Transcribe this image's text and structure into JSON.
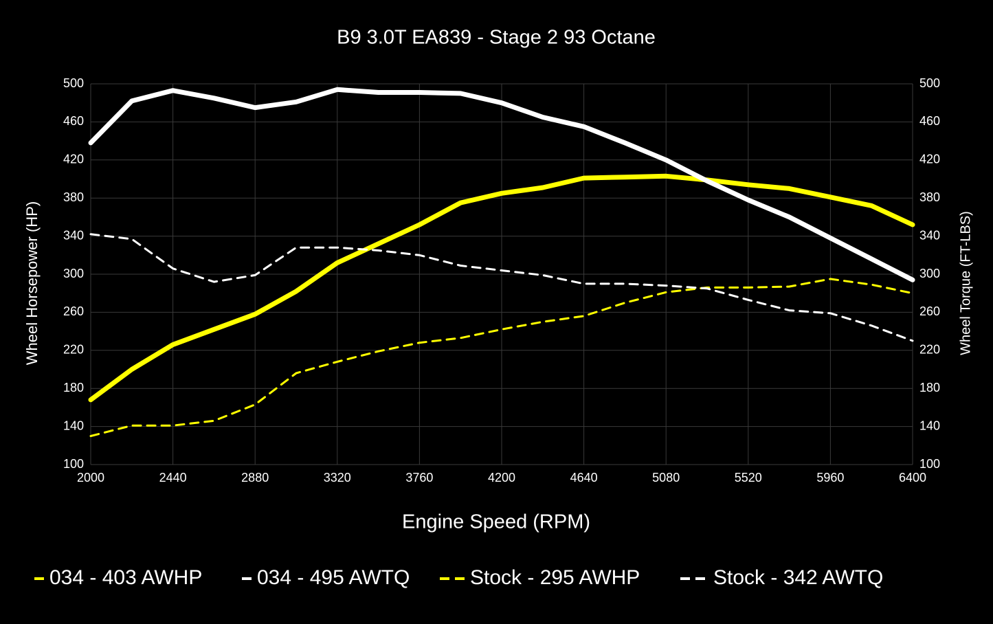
{
  "chart_data": {
    "type": "line",
    "title": "B9 3.0T EA839 - Stage 2 93 Octane",
    "x_label": "Engine Speed (RPM)",
    "y_label": "Wheel Horsepower (HP)",
    "y2_label": "Wheel Torque (FT-LBS)",
    "x": [
      2000,
      2220,
      2440,
      2660,
      2880,
      3100,
      3320,
      3540,
      3760,
      3980,
      4200,
      4420,
      4640,
      4860,
      5080,
      5300,
      5520,
      5740,
      5960,
      6180,
      6400
    ],
    "xlim": [
      2000,
      6400
    ],
    "xticks": [
      2000,
      2440,
      2880,
      3320,
      3760,
      4200,
      4640,
      5080,
      5520,
      5960,
      6400
    ],
    "ylim": [
      100,
      500
    ],
    "yticks": [
      100,
      140,
      180,
      220,
      260,
      300,
      340,
      380,
      420,
      460,
      500
    ],
    "y2lim": [
      100,
      500
    ],
    "y2ticks": [
      100,
      140,
      180,
      220,
      260,
      300,
      340,
      380,
      420,
      460,
      500
    ],
    "grid": true,
    "legend": "bottom",
    "series": [
      {
        "name": "034 - 403 AWHP",
        "color": "#ffff00",
        "dashed": false,
        "values": [
          168,
          200,
          226,
          242,
          258,
          282,
          312,
          332,
          352,
          375,
          385,
          391,
          401,
          402,
          403,
          399,
          394,
          390,
          381,
          372,
          352
        ]
      },
      {
        "name": "034 - 495 AWTQ",
        "color": "#ffffff",
        "dashed": false,
        "axis": "y2",
        "values": [
          438,
          482,
          493,
          485,
          475,
          481,
          494,
          491,
          491,
          490,
          480,
          465,
          455,
          438,
          420,
          398,
          378,
          360,
          338,
          316,
          294
        ]
      },
      {
        "name": "Stock - 295 AWHP",
        "color": "#ffff00",
        "dashed": true,
        "values": [
          130,
          141,
          141,
          146,
          163,
          196,
          208,
          219,
          228,
          233,
          242,
          250,
          256,
          270,
          281,
          286,
          286,
          287,
          295,
          289,
          280
        ]
      },
      {
        "name": "Stock - 342 AWTQ",
        "color": "#ffffff",
        "dashed": true,
        "axis": "y2",
        "values": [
          342,
          337,
          306,
          292,
          299,
          328,
          328,
          325,
          320,
          309,
          304,
          299,
          290,
          290,
          288,
          285,
          273,
          262,
          259,
          246,
          230
        ]
      }
    ]
  }
}
